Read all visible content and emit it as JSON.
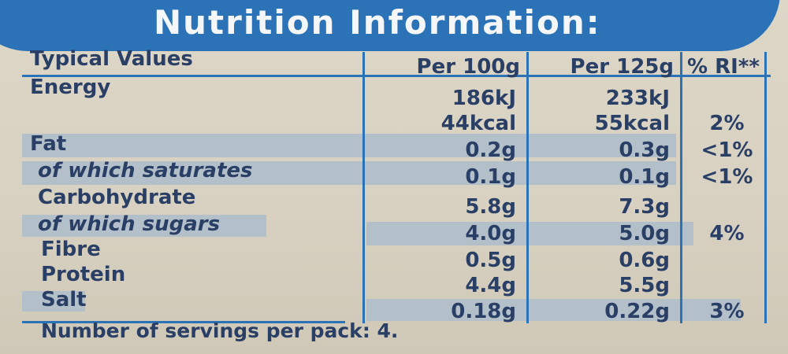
{
  "title": "Nutrition Information:",
  "header": {
    "label": "Typical Values",
    "per100": "Per 100g",
    "per125": "Per 125g",
    "ri": "% RI**"
  },
  "rows": [
    {
      "label": "Energy",
      "per100": "186kJ",
      "per125": "233kJ",
      "ri": ""
    },
    {
      "label": "",
      "per100": "44kcal",
      "per125": "55kcal",
      "ri": "2%"
    },
    {
      "label": "Fat",
      "per100": "0.2g",
      "per125": "0.3g",
      "ri": "<1%"
    },
    {
      "label": "of which saturates",
      "per100": "0.1g",
      "per125": "0.1g",
      "ri": "<1%"
    },
    {
      "label": "Carbohydrate",
      "per100": "5.8g",
      "per125": "7.3g",
      "ri": ""
    },
    {
      "label": "of which sugars",
      "per100": "4.0g",
      "per125": "5.0g",
      "ri": "4%"
    },
    {
      "label": "Fibre",
      "per100": "0.5g",
      "per125": "0.6g",
      "ri": ""
    },
    {
      "label": "Protein",
      "per100": "4.4g",
      "per125": "5.5g",
      "ri": ""
    },
    {
      "label": "Salt",
      "per100": "0.18g",
      "per125": "0.22g",
      "ri": "3%"
    }
  ],
  "footer": "Number of servings per pack: 4.",
  "colors": {
    "brand_blue": "#2b72b6",
    "text_navy": "#2a3f66",
    "band_grey": "#b3bfc9"
  }
}
